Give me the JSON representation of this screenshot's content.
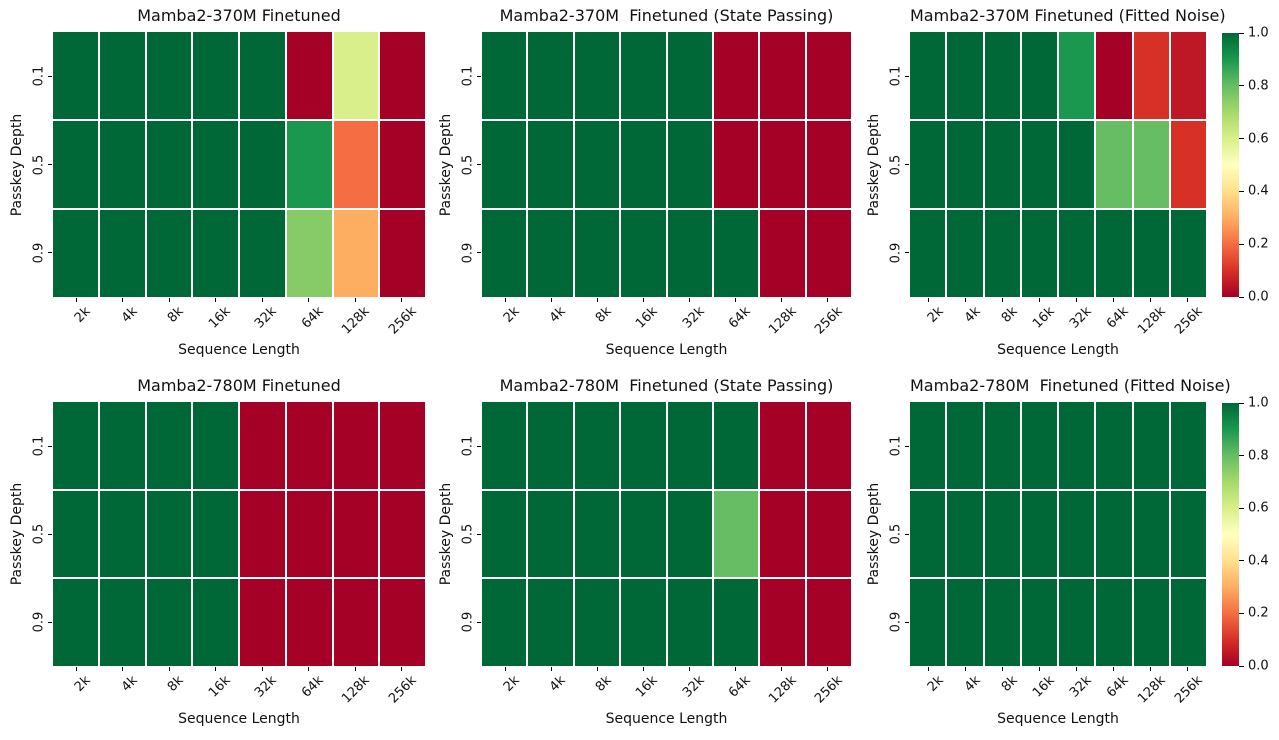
{
  "figure": {
    "background": "#ffffff",
    "text_color": "#111111"
  },
  "colormap": {
    "name": "RdYlGn",
    "stops": [
      "#a50026",
      "#d73027",
      "#f46d43",
      "#fdae61",
      "#fee08b",
      "#ffffbf",
      "#d9ef8b",
      "#a6d96a",
      "#66bd63",
      "#1a9850",
      "#006837"
    ]
  },
  "axes": {
    "xlabel": "Sequence Length",
    "ylabel": "Passkey Depth",
    "x_ticks": [
      "2k",
      "4k",
      "8k",
      "16k",
      "32k",
      "64k",
      "128k",
      "256k"
    ],
    "y_ticks": [
      "0.1",
      "0.5",
      "0.9"
    ]
  },
  "colorbar": {
    "ticks": [
      "1.0",
      "0.8",
      "0.6",
      "0.4",
      "0.2",
      "0.0"
    ],
    "vmin": 0.0,
    "vmax": 1.0
  },
  "chart_data": [
    {
      "type": "heatmap",
      "title": "Mamba2-370M Finetuned",
      "x": [
        "2k",
        "4k",
        "8k",
        "16k",
        "32k",
        "64k",
        "128k",
        "256k"
      ],
      "y": [
        "0.1",
        "0.5",
        "0.9"
      ],
      "vmin": 0.0,
      "vmax": 1.0,
      "values": [
        [
          1.0,
          1.0,
          1.0,
          1.0,
          1.0,
          0.0,
          0.6,
          0.0
        ],
        [
          1.0,
          1.0,
          1.0,
          1.0,
          1.0,
          0.9,
          0.2,
          0.0
        ],
        [
          1.0,
          1.0,
          1.0,
          1.0,
          1.0,
          0.75,
          0.3,
          0.0
        ]
      ]
    },
    {
      "type": "heatmap",
      "title": "Mamba2-370M  Finetuned (State Passing)",
      "x": [
        "2k",
        "4k",
        "8k",
        "16k",
        "32k",
        "64k",
        "128k",
        "256k"
      ],
      "y": [
        "0.1",
        "0.5",
        "0.9"
      ],
      "vmin": 0.0,
      "vmax": 1.0,
      "values": [
        [
          1.0,
          1.0,
          1.0,
          1.0,
          1.0,
          0.0,
          0.0,
          0.0
        ],
        [
          1.0,
          1.0,
          1.0,
          1.0,
          1.0,
          0.0,
          0.0,
          0.0
        ],
        [
          1.0,
          1.0,
          1.0,
          1.0,
          1.0,
          1.0,
          0.0,
          0.0
        ]
      ]
    },
    {
      "type": "heatmap",
      "title": "Mamba2-370M Finetuned (Fitted Noise)",
      "x": [
        "2k",
        "4k",
        "8k",
        "16k",
        "32k",
        "64k",
        "128k",
        "256k"
      ],
      "y": [
        "0.1",
        "0.5",
        "0.9"
      ],
      "vmin": 0.0,
      "vmax": 1.0,
      "values": [
        [
          1.0,
          1.0,
          1.0,
          1.0,
          0.9,
          0.0,
          0.1,
          0.05
        ],
        [
          1.0,
          1.0,
          1.0,
          1.0,
          1.0,
          0.8,
          0.8,
          0.1
        ],
        [
          1.0,
          1.0,
          1.0,
          1.0,
          1.0,
          1.0,
          1.0,
          1.0
        ]
      ]
    },
    {
      "type": "heatmap",
      "title": "Mamba2-780M Finetuned",
      "x": [
        "2k",
        "4k",
        "8k",
        "16k",
        "32k",
        "64k",
        "128k",
        "256k"
      ],
      "y": [
        "0.1",
        "0.5",
        "0.9"
      ],
      "vmin": 0.0,
      "vmax": 1.0,
      "values": [
        [
          1.0,
          1.0,
          1.0,
          1.0,
          0.0,
          0.0,
          0.0,
          0.0
        ],
        [
          1.0,
          1.0,
          1.0,
          1.0,
          0.0,
          0.0,
          0.0,
          0.0
        ],
        [
          1.0,
          1.0,
          1.0,
          1.0,
          0.0,
          0.0,
          0.0,
          0.0
        ]
      ]
    },
    {
      "type": "heatmap",
      "title": "Mamba2-780M  Finetuned (State Passing)",
      "x": [
        "2k",
        "4k",
        "8k",
        "16k",
        "32k",
        "64k",
        "128k",
        "256k"
      ],
      "y": [
        "0.1",
        "0.5",
        "0.9"
      ],
      "vmin": 0.0,
      "vmax": 1.0,
      "values": [
        [
          1.0,
          1.0,
          1.0,
          1.0,
          1.0,
          1.0,
          0.0,
          0.0
        ],
        [
          1.0,
          1.0,
          1.0,
          1.0,
          1.0,
          0.8,
          0.0,
          0.0
        ],
        [
          1.0,
          1.0,
          1.0,
          1.0,
          1.0,
          1.0,
          0.0,
          0.0
        ]
      ]
    },
    {
      "type": "heatmap",
      "title": "Mamba2-780M  Finetuned (Fitted Noise)",
      "x": [
        "2k",
        "4k",
        "8k",
        "16k",
        "32k",
        "64k",
        "128k",
        "256k"
      ],
      "y": [
        "0.1",
        "0.5",
        "0.9"
      ],
      "vmin": 0.0,
      "vmax": 1.0,
      "values": [
        [
          1.0,
          1.0,
          1.0,
          1.0,
          1.0,
          1.0,
          1.0,
          1.0
        ],
        [
          1.0,
          1.0,
          1.0,
          1.0,
          1.0,
          1.0,
          1.0,
          1.0
        ],
        [
          1.0,
          1.0,
          1.0,
          1.0,
          1.0,
          1.0,
          1.0,
          1.0
        ]
      ]
    }
  ]
}
